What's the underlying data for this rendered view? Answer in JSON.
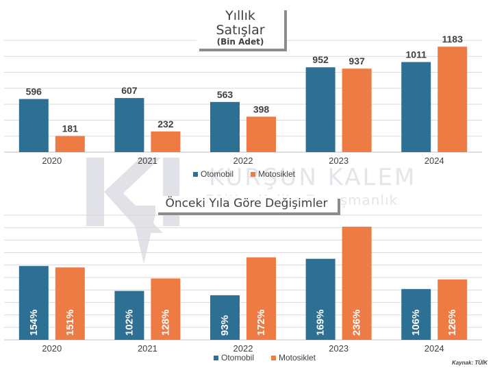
{
  "watermark": {
    "line1": "KURŞUN KALEM",
    "line2": "Eğitim Kalite Danışmanlık"
  },
  "source": "Kaynak: TÜİK",
  "colors": {
    "otomobil": "#2e6f94",
    "motosiklet": "#ee7b44",
    "grid": "#d9d9d9",
    "text": "#404040"
  },
  "chart_data": [
    {
      "type": "bar",
      "title": "Yıllık Satışlar",
      "subtitle": "(Bin Adet)",
      "categories": [
        "2020",
        "2021",
        "2022",
        "2023",
        "2024"
      ],
      "series": [
        {
          "name": "Otomobil",
          "values": [
            596,
            607,
            563,
            952,
            1011
          ],
          "labels": [
            "596",
            "607",
            "563",
            "952",
            "1011"
          ]
        },
        {
          "name": "Motosiklet",
          "values": [
            181,
            232,
            398,
            937,
            1183
          ],
          "labels": [
            "181",
            "232",
            "398",
            "937",
            "1183"
          ]
        }
      ],
      "ylim": [
        0,
        1400
      ],
      "grid": true,
      "legend": "bottom"
    },
    {
      "type": "bar",
      "title": "Önceki Yıla Göre Değişimler",
      "categories": [
        "2020",
        "2021",
        "2022",
        "2023",
        "2024"
      ],
      "series": [
        {
          "name": "Otomobil",
          "values": [
            154,
            102,
            93,
            169,
            106
          ],
          "labels": [
            "154%",
            "102%",
            "93%",
            "169%",
            "106%"
          ]
        },
        {
          "name": "Motosiklet",
          "values": [
            151,
            128,
            172,
            236,
            126
          ],
          "labels": [
            "151%",
            "128%",
            "172%",
            "236%",
            "126%"
          ]
        }
      ],
      "ylim": [
        0,
        260
      ],
      "grid": true,
      "legend": "bottom"
    }
  ]
}
